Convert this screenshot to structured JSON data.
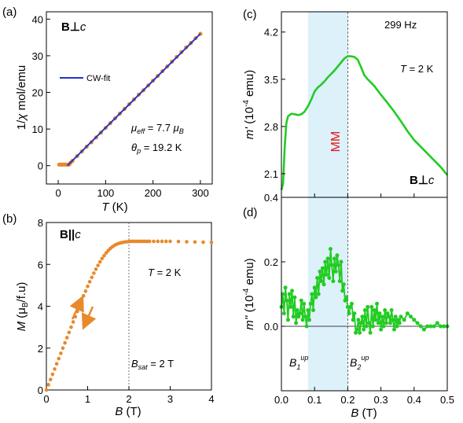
{
  "colors": {
    "orange": "#E8892B",
    "fit_blue": "#2233CC",
    "green": "#22CC22",
    "band": "#DDF1FB",
    "red": "#E41A1C"
  },
  "chart_data": [
    {
      "panel": "(a)",
      "type": "scatter",
      "xlabel": "T (K)",
      "ylabel": "1/χ mol/emu",
      "xlim": [
        -25,
        325
      ],
      "ylim": [
        -5,
        42
      ],
      "xticks": [
        "0",
        "100",
        "200",
        "300"
      ],
      "yticks": [
        "0",
        "10",
        "20",
        "30",
        "40"
      ],
      "field_label": "B⊥c",
      "legend": "CW-fit",
      "annotations": [
        "μeff = 7.7 μB",
        "θp = 19.2 K"
      ],
      "series": [
        {
          "name": "",
          "style": "orange points",
          "x": [
            2,
            5,
            8,
            11,
            14,
            17,
            20,
            23,
            26,
            30,
            40,
            50,
            60,
            70,
            80,
            90,
            100,
            110,
            120,
            130,
            140,
            150,
            160,
            170,
            180,
            190,
            200,
            210,
            220,
            230,
            240,
            250,
            260,
            270,
            280,
            290,
            300
          ],
          "y": [
            0.3,
            0.3,
            0.3,
            0.3,
            0.3,
            0.3,
            0.3,
            0.3,
            0.8,
            1.3,
            2.6,
            3.9,
            5.2,
            6.4,
            7.7,
            9.0,
            10.3,
            11.6,
            12.9,
            14.2,
            15.5,
            16.8,
            18.1,
            19.4,
            20.6,
            21.9,
            23.2,
            24.5,
            25.8,
            27.1,
            28.4,
            29.7,
            31.0,
            32.3,
            33.5,
            34.8,
            36.0
          ]
        },
        {
          "name": "CW-fit",
          "style": "blue line",
          "x": [
            19.2,
            300
          ],
          "y": [
            0,
            36.0
          ]
        }
      ]
    },
    {
      "panel": "(b)",
      "type": "scatter",
      "xlabel": "B (T)",
      "ylabel": "M (μB/f.u)",
      "xlim": [
        0,
        4
      ],
      "ylim": [
        0,
        8
      ],
      "xticks": [
        "0",
        "1",
        "2",
        "3",
        "4"
      ],
      "yticks": [
        "0",
        "2",
        "4",
        "6",
        "8"
      ],
      "field_label": "B||c",
      "annotations": [
        "T = 2 K",
        "Bsat = 2 T"
      ],
      "series": [
        {
          "name": "",
          "style": "orange points",
          "x": [
            0,
            0.05,
            0.1,
            0.15,
            0.2,
            0.25,
            0.3,
            0.35,
            0.4,
            0.45,
            0.5,
            0.55,
            0.6,
            0.65,
            0.7,
            0.75,
            0.8,
            0.85,
            0.9,
            0.95,
            1.0,
            1.05,
            1.1,
            1.15,
            1.2,
            1.25,
            1.3,
            1.35,
            1.4,
            1.45,
            1.5,
            1.55,
            1.6,
            1.65,
            1.7,
            1.75,
            1.8,
            1.85,
            1.9,
            1.95,
            2.0,
            2.05,
            2.1,
            2.15,
            2.2,
            2.25,
            2.3,
            2.35,
            2.4,
            2.45,
            2.5,
            2.6,
            2.7,
            2.8,
            2.9,
            3.0,
            3.2,
            3.4,
            3.6,
            3.8,
            4.0
          ],
          "y": [
            0,
            0.25,
            0.5,
            0.75,
            1.0,
            1.25,
            1.5,
            1.75,
            2.0,
            2.25,
            2.5,
            2.75,
            3.0,
            3.25,
            3.5,
            3.75,
            4.0,
            4.25,
            4.5,
            4.72,
            4.95,
            5.17,
            5.38,
            5.58,
            5.77,
            5.95,
            6.12,
            6.28,
            6.42,
            6.55,
            6.66,
            6.76,
            6.84,
            6.91,
            6.96,
            7.0,
            7.03,
            7.05,
            7.07,
            7.08,
            7.09,
            7.1,
            7.1,
            7.1,
            7.1,
            7.1,
            7.1,
            7.1,
            7.1,
            7.1,
            7.1,
            7.1,
            7.1,
            7.1,
            7.1,
            7.1,
            7.09,
            7.08,
            7.07,
            7.06,
            7.05
          ]
        }
      ]
    },
    {
      "panel": "(c)",
      "type": "line",
      "xlabel": "",
      "ylabel": "m' (10-4 emu)",
      "xlim": [
        0,
        0.5
      ],
      "ylim": [
        1.75,
        4.5
      ],
      "yticks": [
        "2.1",
        "2.8",
        "3.5",
        "4.2"
      ],
      "annotations": [
        "299 Hz",
        "T = 2 K",
        "MM"
      ],
      "field_label": "B⊥c",
      "series": [
        {
          "name": "",
          "style": "green line",
          "x": [
            0,
            0.005,
            0.01,
            0.015,
            0.02,
            0.03,
            0.04,
            0.05,
            0.06,
            0.07,
            0.08,
            0.09,
            0.1,
            0.11,
            0.12,
            0.13,
            0.14,
            0.15,
            0.16,
            0.17,
            0.18,
            0.19,
            0.2,
            0.21,
            0.22,
            0.23,
            0.24,
            0.25,
            0.26,
            0.28,
            0.3,
            0.32,
            0.34,
            0.36,
            0.38,
            0.4,
            0.42,
            0.44,
            0.46,
            0.48,
            0.5
          ],
          "y": [
            1.86,
            1.95,
            2.5,
            2.85,
            2.95,
            2.99,
            2.98,
            2.97,
            2.98,
            3.02,
            3.1,
            3.2,
            3.32,
            3.38,
            3.42,
            3.47,
            3.53,
            3.58,
            3.63,
            3.69,
            3.75,
            3.81,
            3.84,
            3.84,
            3.83,
            3.79,
            3.68,
            3.56,
            3.5,
            3.4,
            3.27,
            3.15,
            3.02,
            2.88,
            2.73,
            2.6,
            2.5,
            2.4,
            2.3,
            2.2,
            2.08
          ]
        }
      ]
    },
    {
      "panel": "(d)",
      "type": "line",
      "xlabel": "B (T)",
      "ylabel": "m'' (10-4 emu)",
      "xlim": [
        0,
        0.5
      ],
      "ylim": [
        -0.2,
        0.4
      ],
      "xticks": [
        "0.0",
        "0.1",
        "0.2",
        "0.3",
        "0.4",
        "0.5"
      ],
      "yticks": [
        "0.0",
        "0.2",
        "0.4"
      ],
      "annotations": [
        "B1up",
        "B2up"
      ],
      "band": [
        0.08,
        0.2
      ],
      "series": [
        {
          "name": "",
          "style": "green line with points",
          "x": [
            0,
            0.004,
            0.008,
            0.012,
            0.016,
            0.02,
            0.024,
            0.028,
            0.032,
            0.036,
            0.04,
            0.044,
            0.048,
            0.052,
            0.056,
            0.06,
            0.064,
            0.068,
            0.072,
            0.076,
            0.08,
            0.084,
            0.088,
            0.092,
            0.096,
            0.1,
            0.104,
            0.108,
            0.112,
            0.116,
            0.12,
            0.124,
            0.128,
            0.132,
            0.136,
            0.14,
            0.144,
            0.148,
            0.152,
            0.156,
            0.16,
            0.164,
            0.168,
            0.172,
            0.176,
            0.18,
            0.184,
            0.188,
            0.192,
            0.196,
            0.2,
            0.204,
            0.208,
            0.212,
            0.216,
            0.22,
            0.224,
            0.228,
            0.232,
            0.236,
            0.24,
            0.244,
            0.248,
            0.252,
            0.256,
            0.26,
            0.264,
            0.268,
            0.272,
            0.276,
            0.28,
            0.284,
            0.288,
            0.292,
            0.296,
            0.3,
            0.304,
            0.308,
            0.312,
            0.316,
            0.32,
            0.324,
            0.328,
            0.332,
            0.336,
            0.34,
            0.344,
            0.348,
            0.352,
            0.356,
            0.36,
            0.37,
            0.38,
            0.39,
            0.4,
            0.41,
            0.42,
            0.43,
            0.44,
            0.45,
            0.46,
            0.47,
            0.48,
            0.49,
            0.5
          ],
          "y": [
            0.06,
            0.1,
            0.04,
            0.12,
            0.08,
            0.02,
            0.1,
            0.06,
            0.11,
            0.03,
            0.09,
            0.01,
            0.05,
            0.03,
            0.04,
            0.08,
            0.02,
            0.07,
            0.03,
            0.0,
            0.05,
            0.02,
            0.07,
            0.1,
            0.05,
            0.12,
            0.09,
            0.15,
            0.1,
            0.17,
            0.14,
            0.18,
            0.13,
            0.2,
            0.16,
            0.21,
            0.15,
            0.24,
            0.19,
            0.14,
            0.21,
            0.17,
            0.22,
            0.19,
            0.14,
            0.2,
            0.11,
            0.13,
            0.08,
            0.09,
            0.06,
            0.04,
            0.06,
            0.07,
            0.02,
            0.04,
            -0.02,
            -0.01,
            0.02,
            -0.02,
            0.01,
            0.03,
            -0.01,
            0.05,
            0.0,
            0.06,
            0.01,
            -0.02,
            0.06,
            0.0,
            0.05,
            0.02,
            0.07,
            0.01,
            0.04,
            -0.01,
            0.03,
            0.0,
            0.05,
            0.01,
            0.04,
            0.03,
            0.01,
            0.05,
            0.02,
            -0.01,
            0.03,
            0.0,
            0.02,
            0.01,
            0.03,
            0.02,
            0.04,
            0.03,
            0.02,
            0.01,
            0.0,
            -0.01,
            0.0,
            0.0,
            0.0,
            0.01,
            0.0,
            0.0,
            0.0
          ]
        }
      ]
    }
  ]
}
